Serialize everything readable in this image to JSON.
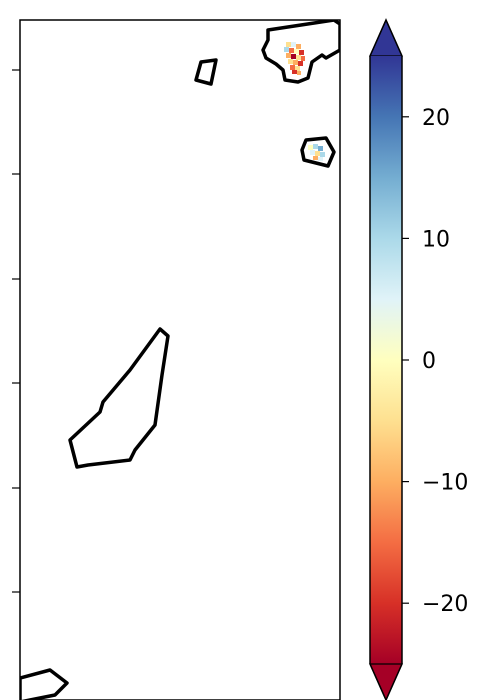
{
  "map": {
    "colormap": "RdYlBu",
    "colormap_stops": [
      "#a50026",
      "#d73027",
      "#f46d43",
      "#fdae61",
      "#fee090",
      "#ffffbf",
      "#e0f3f8",
      "#abd9e9",
      "#74add1",
      "#4575b4",
      "#313695"
    ],
    "outline_color": "#000000",
    "background_color": "#ffffff"
  },
  "colorbar": {
    "min": -25,
    "max": 25,
    "extend": "both",
    "ticks": [
      {
        "value": 20,
        "label": "20"
      },
      {
        "value": 10,
        "label": "10"
      },
      {
        "value": 0,
        "label": "0"
      },
      {
        "value": -10,
        "label": "−10"
      },
      {
        "value": -20,
        "label": "−20"
      }
    ]
  }
}
